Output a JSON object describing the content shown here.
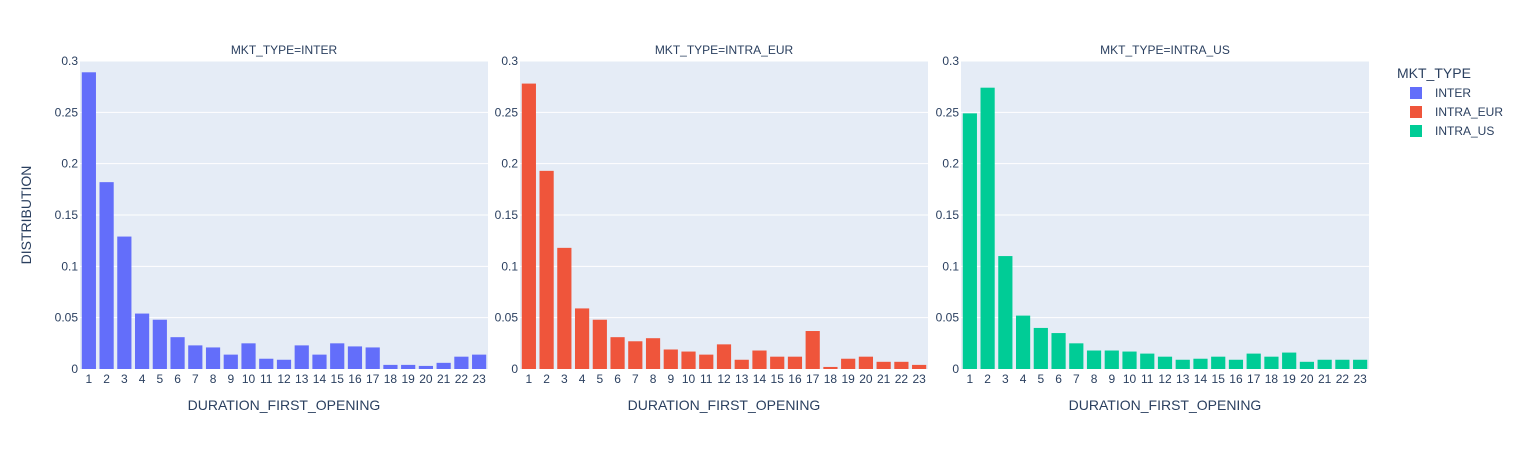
{
  "chart_data": {
    "type": "bar",
    "ylabel": "DISTRIBUTION",
    "xlabel": "DURATION_FIRST_OPENING",
    "ylim": [
      0,
      0.3
    ],
    "yticks": [
      "0",
      "0.05",
      "0.1",
      "0.15",
      "0.2",
      "0.25",
      "0.3"
    ],
    "categories": [
      "1",
      "2",
      "3",
      "4",
      "5",
      "6",
      "7",
      "8",
      "9",
      "10",
      "11",
      "12",
      "13",
      "14",
      "15",
      "16",
      "17",
      "18",
      "19",
      "20",
      "21",
      "22",
      "23"
    ],
    "grid": true,
    "legend": {
      "title": "MKT_TYPE",
      "placement": "top-right",
      "entries": [
        "INTER",
        "INTRA_EUR",
        "INTRA_US"
      ]
    },
    "panels": [
      {
        "title": "MKT_TYPE=INTER",
        "series_name": "INTER",
        "color": "#636efa",
        "values": [
          0.289,
          0.182,
          0.129,
          0.054,
          0.048,
          0.031,
          0.023,
          0.021,
          0.014,
          0.025,
          0.01,
          0.009,
          0.023,
          0.014,
          0.025,
          0.022,
          0.021,
          0.004,
          0.004,
          0.003,
          0.006,
          0.012,
          0.014
        ]
      },
      {
        "title": "MKT_TYPE=INTRA_EUR",
        "series_name": "INTRA_EUR",
        "color": "#ef553b",
        "values": [
          0.278,
          0.193,
          0.118,
          0.059,
          0.048,
          0.031,
          0.027,
          0.03,
          0.019,
          0.017,
          0.014,
          0.024,
          0.009,
          0.018,
          0.012,
          0.012,
          0.037,
          0.002,
          0.01,
          0.012,
          0.007,
          0.007,
          0.004
        ]
      },
      {
        "title": "MKT_TYPE=INTRA_US",
        "series_name": "INTRA_US",
        "color": "#00cc96",
        "values": [
          0.249,
          0.274,
          0.11,
          0.052,
          0.04,
          0.035,
          0.025,
          0.018,
          0.018,
          0.017,
          0.015,
          0.012,
          0.009,
          0.01,
          0.012,
          0.009,
          0.015,
          0.012,
          0.016,
          0.007,
          0.009,
          0.009,
          0.009
        ]
      }
    ]
  }
}
